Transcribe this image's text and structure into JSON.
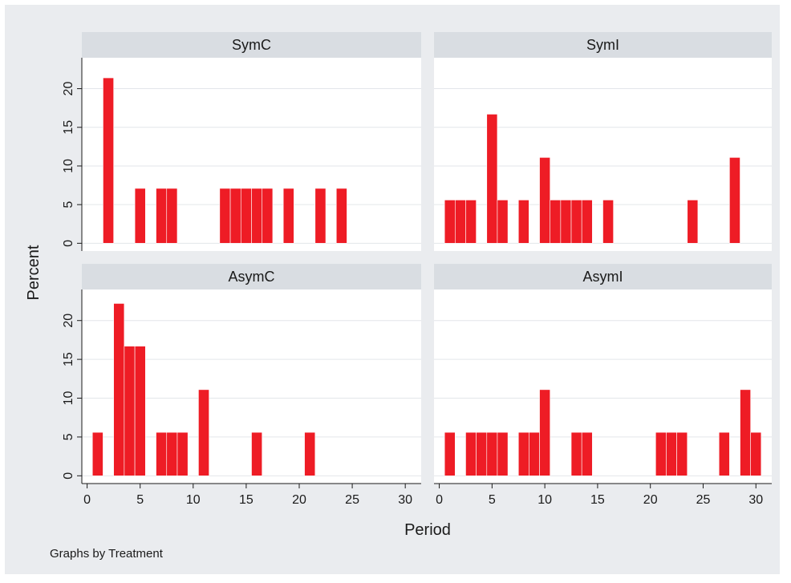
{
  "colors": {
    "outer_background": "#eaecef",
    "panel_background": "#ffffff",
    "strip_background": "#d9dde2",
    "bar_fill": "#ee1c25",
    "gridline": "#e3e6ea",
    "axis": "#1a1a1a"
  },
  "figure": {
    "y_axis_title": "Percent",
    "x_axis_title": "Period",
    "note": "Graphs by Treatment"
  },
  "chart_data": {
    "type": "bar",
    "layout": "2x2 facet grid",
    "xlabel": "Period",
    "ylabel": "Percent",
    "xlim": [
      -0.5,
      31.5
    ],
    "ylim": [
      -1,
      24
    ],
    "xticks": [
      0,
      5,
      10,
      15,
      20,
      25,
      30
    ],
    "yticks": [
      0,
      5,
      10,
      15,
      20
    ],
    "bar_width": 1,
    "grid": true,
    "note": "Graphs by Treatment",
    "panels": [
      {
        "title": "SymC",
        "x": [
          2,
          5,
          7,
          8,
          13,
          14,
          15,
          16,
          17,
          19,
          22,
          24
        ],
        "values": [
          21.4,
          7.1,
          7.1,
          7.1,
          7.1,
          7.1,
          7.1,
          7.1,
          7.1,
          7.1,
          7.1,
          7.1
        ]
      },
      {
        "title": "SymI",
        "x": [
          1,
          2,
          3,
          5,
          6,
          8,
          10,
          11,
          12,
          13,
          14,
          16,
          24,
          28
        ],
        "values": [
          5.6,
          5.6,
          5.6,
          16.7,
          5.6,
          5.6,
          11.1,
          5.6,
          5.6,
          5.6,
          5.6,
          5.6,
          5.6,
          11.1
        ]
      },
      {
        "title": "AsymC",
        "x": [
          1,
          3,
          4,
          5,
          7,
          8,
          9,
          11,
          16,
          21
        ],
        "values": [
          5.6,
          22.2,
          16.7,
          16.7,
          5.6,
          5.6,
          5.6,
          11.1,
          5.6,
          5.6
        ]
      },
      {
        "title": "AsymI",
        "x": [
          1,
          3,
          4,
          5,
          6,
          8,
          9,
          10,
          13,
          14,
          21,
          22,
          23,
          27,
          29,
          30
        ],
        "values": [
          5.6,
          5.6,
          5.6,
          5.6,
          5.6,
          5.6,
          5.6,
          11.1,
          5.6,
          5.6,
          5.6,
          5.6,
          5.6,
          5.6,
          11.1,
          5.6
        ]
      }
    ]
  }
}
